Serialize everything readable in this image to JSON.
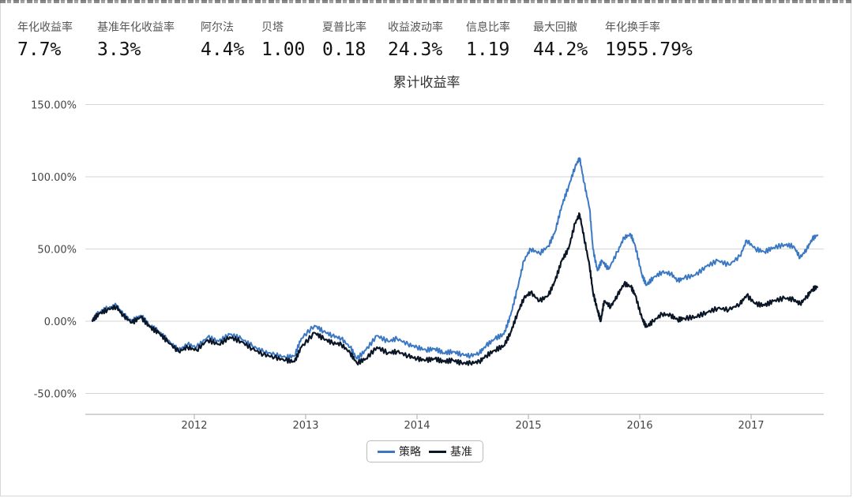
{
  "metrics": [
    {
      "label": "年化收益率",
      "value": "7.7%"
    },
    {
      "label": "基准年化收益率",
      "value": "3.3%"
    },
    {
      "label": "阿尔法",
      "value": "4.4%"
    },
    {
      "label": "贝塔",
      "value": "1.00"
    },
    {
      "label": "夏普比率",
      "value": "0.18"
    },
    {
      "label": "收益波动率",
      "value": "24.3%"
    },
    {
      "label": "信息比率",
      "value": "1.19"
    },
    {
      "label": "最大回撤",
      "value": "44.2%"
    },
    {
      "label": "年化换手率",
      "value": "1955.79%"
    }
  ],
  "chart_data": {
    "type": "line",
    "title": "累计收益率",
    "xlabel": "",
    "ylabel": "",
    "x_ticks": [
      "2012",
      "2013",
      "2014",
      "2015",
      "2016",
      "2017"
    ],
    "y_ticks": [
      "150.00%",
      "100.00%",
      "50.00%",
      "0.00%",
      "-50.00%"
    ],
    "y_tick_values": [
      150,
      100,
      50,
      0,
      -50
    ],
    "xlim": [
      2011.08,
      2017.6
    ],
    "ylim": [
      -63,
      150
    ],
    "grid": true,
    "legend_position": "bottom-center",
    "series": [
      {
        "name": "策略",
        "color": "#3b78c3",
        "points": [
          [
            2011.08,
            0
          ],
          [
            2011.14,
            6
          ],
          [
            2011.22,
            9
          ],
          [
            2011.3,
            11
          ],
          [
            2011.36,
            5
          ],
          [
            2011.44,
            0
          ],
          [
            2011.52,
            4
          ],
          [
            2011.6,
            -3
          ],
          [
            2011.68,
            -7
          ],
          [
            2011.76,
            -13
          ],
          [
            2011.86,
            -20
          ],
          [
            2011.94,
            -16
          ],
          [
            2012.02,
            -18
          ],
          [
            2012.12,
            -11
          ],
          [
            2012.22,
            -14
          ],
          [
            2012.32,
            -9
          ],
          [
            2012.42,
            -12
          ],
          [
            2012.52,
            -17
          ],
          [
            2012.62,
            -21
          ],
          [
            2012.72,
            -23
          ],
          [
            2012.82,
            -25
          ],
          [
            2012.9,
            -24
          ],
          [
            2012.96,
            -12
          ],
          [
            2013.08,
            -3
          ],
          [
            2013.16,
            -7
          ],
          [
            2013.24,
            -10
          ],
          [
            2013.32,
            -12
          ],
          [
            2013.4,
            -18
          ],
          [
            2013.46,
            -26
          ],
          [
            2013.54,
            -20
          ],
          [
            2013.64,
            -10
          ],
          [
            2013.74,
            -14
          ],
          [
            2013.82,
            -12
          ],
          [
            2013.92,
            -16
          ],
          [
            2014.0,
            -18
          ],
          [
            2014.08,
            -20
          ],
          [
            2014.16,
            -19
          ],
          [
            2014.24,
            -22
          ],
          [
            2014.32,
            -21
          ],
          [
            2014.4,
            -23
          ],
          [
            2014.48,
            -24
          ],
          [
            2014.56,
            -22
          ],
          [
            2014.62,
            -17
          ],
          [
            2014.7,
            -12
          ],
          [
            2014.78,
            -9
          ],
          [
            2014.84,
            4
          ],
          [
            2014.9,
            22
          ],
          [
            2014.96,
            42
          ],
          [
            2015.02,
            50
          ],
          [
            2015.1,
            47
          ],
          [
            2015.18,
            52
          ],
          [
            2015.24,
            62
          ],
          [
            2015.3,
            80
          ],
          [
            2015.36,
            93
          ],
          [
            2015.42,
            107
          ],
          [
            2015.46,
            113
          ],
          [
            2015.5,
            96
          ],
          [
            2015.55,
            78
          ],
          [
            2015.58,
            50
          ],
          [
            2015.62,
            35
          ],
          [
            2015.66,
            42
          ],
          [
            2015.72,
            36
          ],
          [
            2015.8,
            48
          ],
          [
            2015.86,
            58
          ],
          [
            2015.92,
            60
          ],
          [
            2015.96,
            52
          ],
          [
            2016.02,
            32
          ],
          [
            2016.06,
            25
          ],
          [
            2016.12,
            30
          ],
          [
            2016.2,
            34
          ],
          [
            2016.28,
            33
          ],
          [
            2016.34,
            28
          ],
          [
            2016.4,
            30
          ],
          [
            2016.5,
            32
          ],
          [
            2016.6,
            38
          ],
          [
            2016.7,
            42
          ],
          [
            2016.8,
            39
          ],
          [
            2016.9,
            45
          ],
          [
            2016.96,
            56
          ],
          [
            2017.04,
            50
          ],
          [
            2017.12,
            48
          ],
          [
            2017.2,
            51
          ],
          [
            2017.3,
            53
          ],
          [
            2017.38,
            52
          ],
          [
            2017.44,
            44
          ],
          [
            2017.5,
            50
          ],
          [
            2017.55,
            57
          ],
          [
            2017.6,
            60
          ]
        ]
      },
      {
        "name": "基准",
        "color": "#0b1626",
        "points": [
          [
            2011.08,
            0
          ],
          [
            2011.14,
            5
          ],
          [
            2011.22,
            8
          ],
          [
            2011.3,
            10
          ],
          [
            2011.36,
            4
          ],
          [
            2011.44,
            -1
          ],
          [
            2011.52,
            3
          ],
          [
            2011.6,
            -4
          ],
          [
            2011.68,
            -8
          ],
          [
            2011.76,
            -14
          ],
          [
            2011.86,
            -21
          ],
          [
            2011.94,
            -18
          ],
          [
            2012.02,
            -20
          ],
          [
            2012.12,
            -13
          ],
          [
            2012.22,
            -16
          ],
          [
            2012.32,
            -11
          ],
          [
            2012.42,
            -14
          ],
          [
            2012.52,
            -19
          ],
          [
            2012.62,
            -23
          ],
          [
            2012.72,
            -25
          ],
          [
            2012.82,
            -27
          ],
          [
            2012.9,
            -28
          ],
          [
            2012.96,
            -18
          ],
          [
            2013.08,
            -8
          ],
          [
            2013.16,
            -12
          ],
          [
            2013.24,
            -15
          ],
          [
            2013.32,
            -16
          ],
          [
            2013.4,
            -22
          ],
          [
            2013.46,
            -29
          ],
          [
            2013.54,
            -26
          ],
          [
            2013.64,
            -18
          ],
          [
            2013.74,
            -22
          ],
          [
            2013.82,
            -21
          ],
          [
            2013.92,
            -24
          ],
          [
            2014.0,
            -26
          ],
          [
            2014.08,
            -27
          ],
          [
            2014.16,
            -26
          ],
          [
            2014.24,
            -28
          ],
          [
            2014.32,
            -27
          ],
          [
            2014.4,
            -29
          ],
          [
            2014.48,
            -29
          ],
          [
            2014.56,
            -28
          ],
          [
            2014.62,
            -24
          ],
          [
            2014.7,
            -20
          ],
          [
            2014.78,
            -17
          ],
          [
            2014.84,
            -8
          ],
          [
            2014.9,
            5
          ],
          [
            2014.96,
            16
          ],
          [
            2015.02,
            20
          ],
          [
            2015.1,
            14
          ],
          [
            2015.18,
            18
          ],
          [
            2015.24,
            28
          ],
          [
            2015.3,
            42
          ],
          [
            2015.36,
            50
          ],
          [
            2015.42,
            68
          ],
          [
            2015.46,
            74
          ],
          [
            2015.5,
            58
          ],
          [
            2015.55,
            38
          ],
          [
            2015.58,
            20
          ],
          [
            2015.62,
            8
          ],
          [
            2015.65,
            0
          ],
          [
            2015.68,
            14
          ],
          [
            2015.74,
            10
          ],
          [
            2015.8,
            18
          ],
          [
            2015.86,
            26
          ],
          [
            2015.92,
            24
          ],
          [
            2015.96,
            18
          ],
          [
            2016.02,
            2
          ],
          [
            2016.06,
            -4
          ],
          [
            2016.12,
            0
          ],
          [
            2016.2,
            5
          ],
          [
            2016.28,
            4
          ],
          [
            2016.34,
            1
          ],
          [
            2016.4,
            2
          ],
          [
            2016.5,
            3
          ],
          [
            2016.6,
            6
          ],
          [
            2016.7,
            9
          ],
          [
            2016.8,
            8
          ],
          [
            2016.9,
            12
          ],
          [
            2016.96,
            18
          ],
          [
            2017.04,
            12
          ],
          [
            2017.12,
            11
          ],
          [
            2017.2,
            14
          ],
          [
            2017.3,
            16
          ],
          [
            2017.38,
            15
          ],
          [
            2017.44,
            12
          ],
          [
            2017.5,
            17
          ],
          [
            2017.55,
            22
          ],
          [
            2017.6,
            24
          ]
        ]
      }
    ]
  }
}
